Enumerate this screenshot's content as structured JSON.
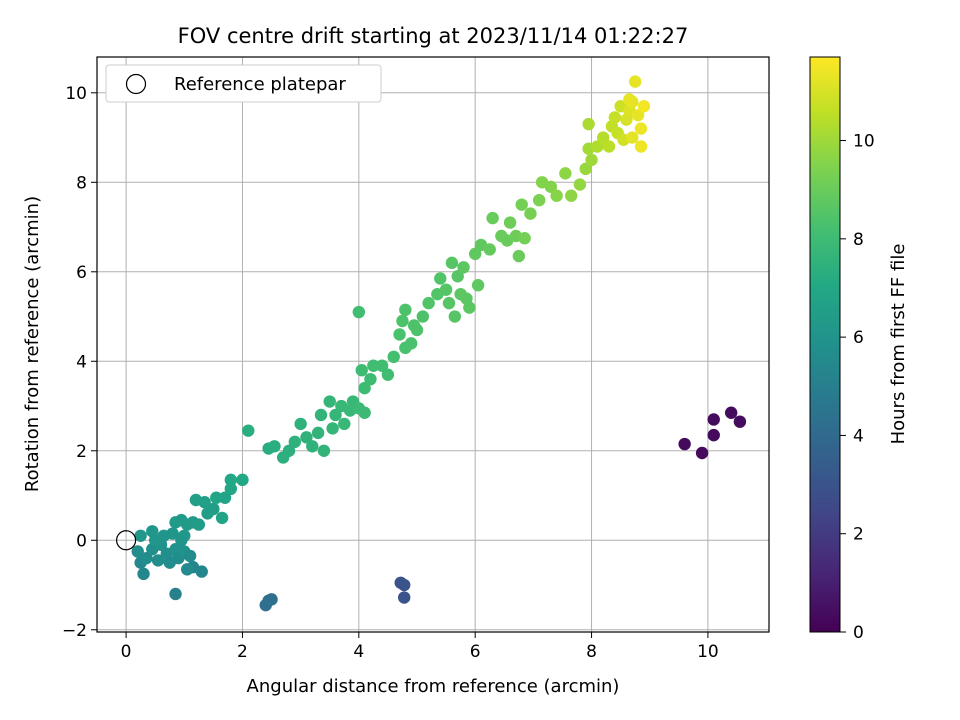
{
  "chart_data": {
    "type": "scatter",
    "title": "FOV centre drift starting at 2023/11/14 01:22:27",
    "xlabel": "Angular distance from reference (arcmin)",
    "ylabel": "Rotation from reference (arcmin)",
    "xlim": [
      -0.5,
      11.05
    ],
    "ylim": [
      -2.05,
      10.8
    ],
    "xticks": [
      "0",
      "2",
      "4",
      "6",
      "8",
      "10"
    ],
    "yticks": [
      "−2",
      "0",
      "2",
      "4",
      "6",
      "8",
      "10"
    ],
    "grid": true,
    "legend": {
      "position": "top-left",
      "label": "Reference platepar"
    },
    "reference_point": {
      "x": 0,
      "y": 0
    },
    "colorbar": {
      "label": "Hours from first FF file",
      "range": [
        0,
        11.7
      ],
      "ticks": [
        "0",
        "2",
        "4",
        "6",
        "8",
        "10"
      ],
      "colormap": "viridis"
    },
    "points": [
      [
        9.6,
        2.15,
        0.3
      ],
      [
        9.9,
        1.95,
        0.3
      ],
      [
        10.1,
        2.35,
        0.3
      ],
      [
        10.1,
        2.7,
        0.35
      ],
      [
        10.4,
        2.85,
        0.35
      ],
      [
        10.55,
        2.65,
        0.4
      ],
      [
        4.72,
        -0.95,
        3.0
      ],
      [
        4.78,
        -1.0,
        3.0
      ],
      [
        4.78,
        -1.28,
        3.0
      ],
      [
        2.4,
        -1.45,
        4.3
      ],
      [
        2.45,
        -1.35,
        4.3
      ],
      [
        2.5,
        -1.32,
        4.3
      ],
      [
        0.25,
        -0.5,
        5.4
      ],
      [
        0.3,
        -0.75,
        5.4
      ],
      [
        0.85,
        -1.2,
        5.1
      ],
      [
        1.15,
        -0.6,
        5.3
      ],
      [
        1.3,
        -0.7,
        5.3
      ],
      [
        1.05,
        -0.65,
        5.5
      ],
      [
        0.2,
        -0.25,
        5.6
      ],
      [
        0.35,
        -0.4,
        5.7
      ],
      [
        0.45,
        -0.2,
        5.8
      ],
      [
        0.55,
        -0.45,
        5.7
      ],
      [
        0.6,
        -0.1,
        5.9
      ],
      [
        0.7,
        -0.3,
        5.8
      ],
      [
        0.75,
        -0.5,
        5.6
      ],
      [
        0.85,
        -0.2,
        5.9
      ],
      [
        0.9,
        -0.4,
        5.7
      ],
      [
        1.0,
        -0.25,
        5.9
      ],
      [
        1.1,
        -0.35,
        5.6
      ],
      [
        0.95,
        0.0,
        6.0
      ],
      [
        1.0,
        0.1,
        6.1
      ],
      [
        0.8,
        0.15,
        6.1
      ],
      [
        0.65,
        0.1,
        6.0
      ],
      [
        0.5,
        0.0,
        6.1
      ],
      [
        0.45,
        0.2,
        6.1
      ],
      [
        0.25,
        0.1,
        6.1
      ],
      [
        0.85,
        0.4,
        6.3
      ],
      [
        0.95,
        0.45,
        6.3
      ],
      [
        1.05,
        0.35,
        6.3
      ],
      [
        1.15,
        0.4,
        6.3
      ],
      [
        1.25,
        0.35,
        6.4
      ],
      [
        1.4,
        0.6,
        6.5
      ],
      [
        1.5,
        0.7,
        6.5
      ],
      [
        1.35,
        0.85,
        6.6
      ],
      [
        1.2,
        0.9,
        6.6
      ],
      [
        1.55,
        0.95,
        6.8
      ],
      [
        1.7,
        0.95,
        6.8
      ],
      [
        1.65,
        0.5,
        6.8
      ],
      [
        1.8,
        1.15,
        6.9
      ],
      [
        1.8,
        1.35,
        7.0
      ],
      [
        2.0,
        1.35,
        7.0
      ],
      [
        2.1,
        2.45,
        7.3
      ],
      [
        2.45,
        2.05,
        7.3
      ],
      [
        2.55,
        2.1,
        7.3
      ],
      [
        2.7,
        1.85,
        7.4
      ],
      [
        2.8,
        2.0,
        7.4
      ],
      [
        2.9,
        2.2,
        7.5
      ],
      [
        3.0,
        2.6,
        7.5
      ],
      [
        3.1,
        2.3,
        7.5
      ],
      [
        3.2,
        2.1,
        7.5
      ],
      [
        3.3,
        2.4,
        7.6
      ],
      [
        3.35,
        2.8,
        7.6
      ],
      [
        3.4,
        2.0,
        7.6
      ],
      [
        3.5,
        3.1,
        7.7
      ],
      [
        3.55,
        2.5,
        7.7
      ],
      [
        3.6,
        2.8,
        7.7
      ],
      [
        3.7,
        3.0,
        7.8
      ],
      [
        3.75,
        2.6,
        7.8
      ],
      [
        3.85,
        2.9,
        7.8
      ],
      [
        3.9,
        3.1,
        7.8
      ],
      [
        4.0,
        2.95,
        7.9
      ],
      [
        4.05,
        3.8,
        8.0
      ],
      [
        4.1,
        3.4,
        8.0
      ],
      [
        4.2,
        3.6,
        8.0
      ],
      [
        4.25,
        3.9,
        8.1
      ],
      [
        4.4,
        3.9,
        8.1
      ],
      [
        4.5,
        3.7,
        8.1
      ],
      [
        4.0,
        5.1,
        8.1
      ],
      [
        4.1,
        2.85,
        7.9
      ],
      [
        4.6,
        4.1,
        8.2
      ],
      [
        4.7,
        4.6,
        8.3
      ],
      [
        4.8,
        4.3,
        8.3
      ],
      [
        4.9,
        4.4,
        8.3
      ],
      [
        4.95,
        4.8,
        8.4
      ],
      [
        5.0,
        4.7,
        8.4
      ],
      [
        5.1,
        5.0,
        8.4
      ],
      [
        4.8,
        5.15,
        8.4
      ],
      [
        4.75,
        4.9,
        8.4
      ],
      [
        5.2,
        5.3,
        8.5
      ],
      [
        5.35,
        5.5,
        8.5
      ],
      [
        5.4,
        5.85,
        8.5
      ],
      [
        5.5,
        5.6,
        8.6
      ],
      [
        5.55,
        5.3,
        8.6
      ],
      [
        5.6,
        6.2,
        8.6
      ],
      [
        5.7,
        5.9,
        8.6
      ],
      [
        5.75,
        5.5,
        8.7
      ],
      [
        5.8,
        6.1,
        8.7
      ],
      [
        5.85,
        5.4,
        8.7
      ],
      [
        5.9,
        5.2,
        8.7
      ],
      [
        5.65,
        5.0,
        8.6
      ],
      [
        6.0,
        6.4,
        8.8
      ],
      [
        6.05,
        5.7,
        8.8
      ],
      [
        6.1,
        6.6,
        8.8
      ],
      [
        6.25,
        6.5,
        8.9
      ],
      [
        6.3,
        7.2,
        9.0
      ],
      [
        6.45,
        6.8,
        9.0
      ],
      [
        6.55,
        6.7,
        9.0
      ],
      [
        6.6,
        7.1,
        9.1
      ],
      [
        6.7,
        6.8,
        9.1
      ],
      [
        6.75,
        6.35,
        9.0
      ],
      [
        6.8,
        7.5,
        9.2
      ],
      [
        6.85,
        6.75,
        9.2
      ],
      [
        6.95,
        7.3,
        9.3
      ],
      [
        7.1,
        7.6,
        9.4
      ],
      [
        7.15,
        8.0,
        9.5
      ],
      [
        7.3,
        7.9,
        9.5
      ],
      [
        7.4,
        7.7,
        9.6
      ],
      [
        7.55,
        8.2,
        9.7
      ],
      [
        7.65,
        7.7,
        9.7
      ],
      [
        7.8,
        7.95,
        9.8
      ],
      [
        7.9,
        8.3,
        9.9
      ],
      [
        8.0,
        8.5,
        10.0
      ],
      [
        7.95,
        8.75,
        10.1
      ],
      [
        7.95,
        9.3,
        10.2
      ],
      [
        8.1,
        8.8,
        10.3
      ],
      [
        8.2,
        9.0,
        10.4
      ],
      [
        8.3,
        8.8,
        10.5
      ],
      [
        8.35,
        9.25,
        10.6
      ],
      [
        8.45,
        9.1,
        10.7
      ],
      [
        8.5,
        9.7,
        10.8
      ],
      [
        8.55,
        8.95,
        10.9
      ],
      [
        8.6,
        9.4,
        11.0
      ],
      [
        8.65,
        9.6,
        11.1
      ],
      [
        8.7,
        9.8,
        11.2
      ],
      [
        8.75,
        10.25,
        11.3
      ],
      [
        8.8,
        9.5,
        11.3
      ],
      [
        8.85,
        9.2,
        11.4
      ],
      [
        8.9,
        9.7,
        11.5
      ],
      [
        8.85,
        8.8,
        11.4
      ],
      [
        8.7,
        9.0,
        11.2
      ],
      [
        8.65,
        9.85,
        11.3
      ],
      [
        8.4,
        9.45,
        10.7
      ]
    ]
  }
}
